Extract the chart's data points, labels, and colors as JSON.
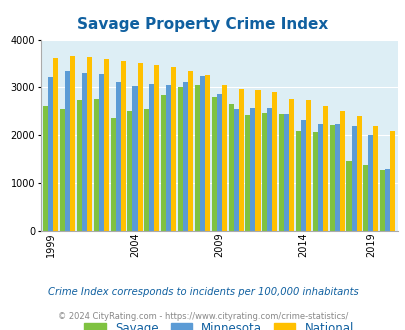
{
  "title": "Savage Property Crime Index",
  "years": [
    1999,
    2000,
    2001,
    2002,
    2003,
    2004,
    2005,
    2006,
    2007,
    2008,
    2009,
    2010,
    2011,
    2012,
    2013,
    2014,
    2015,
    2016,
    2018,
    2019,
    2020
  ],
  "savage": [
    2620,
    2540,
    2730,
    2750,
    2360,
    2500,
    2560,
    2840,
    3000,
    3060,
    2800,
    2650,
    2430,
    2460,
    2440,
    2090,
    2070,
    2220,
    1460,
    1370,
    1280
  ],
  "minnesota": [
    3220,
    3340,
    3300,
    3280,
    3110,
    3040,
    3080,
    3060,
    3120,
    3230,
    2870,
    2560,
    2570,
    2580,
    2450,
    2310,
    2240,
    2230,
    2190,
    2000,
    1300
  ],
  "national": [
    3610,
    3650,
    3640,
    3600,
    3560,
    3520,
    3470,
    3420,
    3340,
    3250,
    3050,
    2960,
    2940,
    2910,
    2750,
    2730,
    2610,
    2510,
    2410,
    2200,
    2100
  ],
  "savage_color": "#7fc241",
  "minnesota_color": "#5b9bd5",
  "national_color": "#ffc000",
  "bg_color": "#ddeef5",
  "ylim": [
    0,
    4000
  ],
  "yticks": [
    0,
    1000,
    2000,
    3000,
    4000
  ],
  "subtitle": "Crime Index corresponds to incidents per 100,000 inhabitants",
  "footer": "© 2024 CityRating.com - https://www.cityrating.com/crime-statistics/",
  "legend_labels": [
    "Savage",
    "Minnesota",
    "National"
  ],
  "xtick_years": [
    1999,
    2004,
    2009,
    2014,
    2019
  ],
  "title_color": "#1060a0",
  "subtitle_color": "#1060a0",
  "footer_color": "#888888"
}
